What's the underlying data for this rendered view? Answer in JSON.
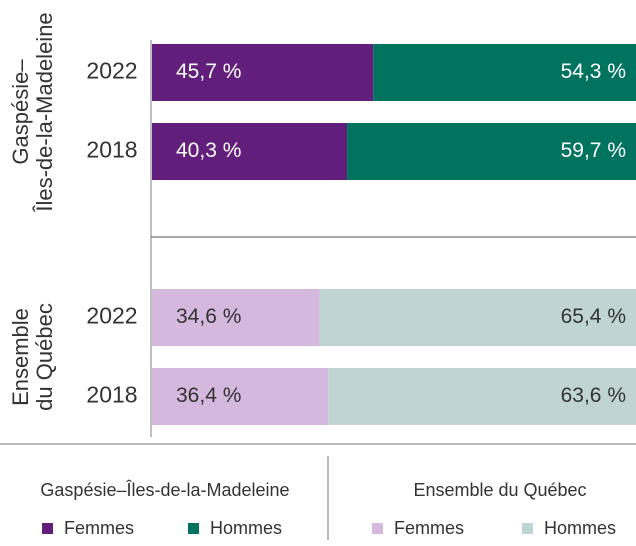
{
  "chart_data": [
    {
      "type": "bar",
      "orientation": "horizontal",
      "stacked": true,
      "group_label": [
        "Gaspésie–",
        "Îles-de-la-Madeleine"
      ],
      "legend_title": "Gaspésie–Îles-de-la-Madeleine",
      "categories": [
        "2022",
        "2018"
      ],
      "xlim": [
        0,
        100
      ],
      "series": [
        {
          "name": "Femmes",
          "color": "#621e7b",
          "label_color": "#ffffff",
          "values": [
            45.7,
            40.3
          ],
          "value_labels": [
            "45,7 %",
            "40,3 %"
          ]
        },
        {
          "name": "Hommes",
          "color": "#00735f",
          "label_color": "#ffffff",
          "values": [
            54.3,
            59.7
          ],
          "value_labels": [
            "54,3 %",
            "59,7 %"
          ]
        }
      ]
    },
    {
      "type": "bar",
      "orientation": "horizontal",
      "stacked": true,
      "group_label": [
        "Ensemble",
        "du Québec"
      ],
      "legend_title": "Ensemble du Québec",
      "categories": [
        "2022",
        "2018"
      ],
      "xlim": [
        0,
        100
      ],
      "series": [
        {
          "name": "Femmes",
          "color": "#d4b8dd",
          "label_color": "#333333",
          "values": [
            34.6,
            36.4
          ],
          "value_labels": [
            "34,6 %",
            "36,4 %"
          ]
        },
        {
          "name": "Hommes",
          "color": "#c0d4d4",
          "label_color": "#333333",
          "values": [
            65.4,
            63.6
          ],
          "value_labels": [
            "65,4 %",
            "63,6 %"
          ]
        }
      ]
    }
  ]
}
